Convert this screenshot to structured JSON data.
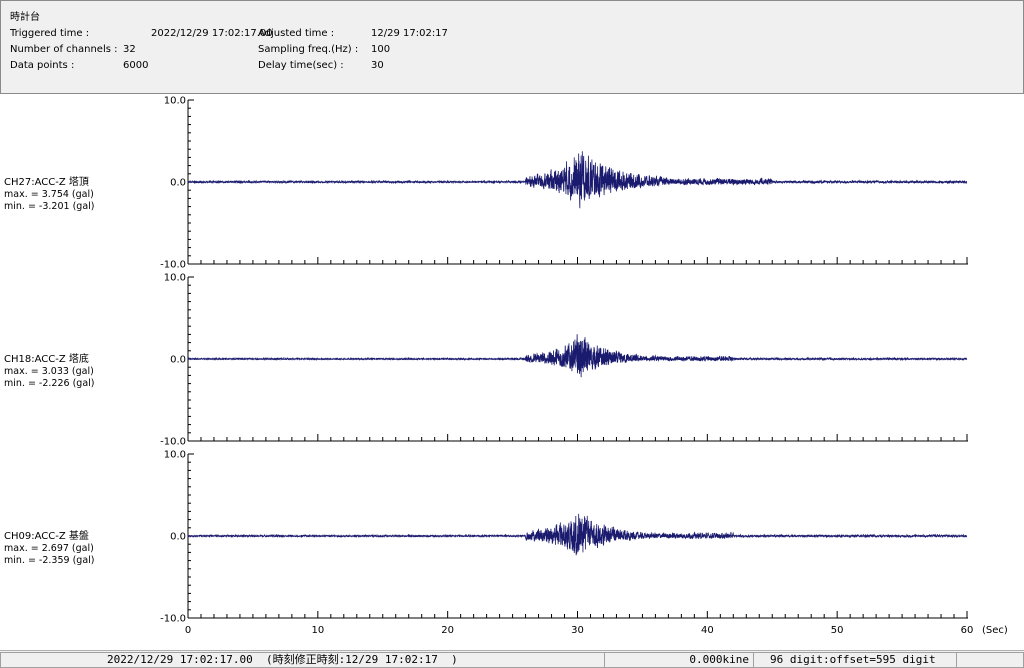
{
  "header": {
    "station": "時計台",
    "triggered_label": "Triggered time :",
    "triggered_value": "2022/12/29 17:02:17.00",
    "channels_label": "Number of channels :",
    "channels_value": "32",
    "datapoints_label": "Data points :",
    "datapoints_value": "6000",
    "adjusted_label": "Adjusted time :",
    "adjusted_value": "12/29 17:02:17",
    "sampling_label": "Sampling freq.(Hz) :",
    "sampling_value": "100",
    "delay_label": "Delay time(sec) :",
    "delay_value": "30"
  },
  "chart_data": {
    "type": "line",
    "x_unit": "(Sec)",
    "xlim": [
      0,
      60
    ],
    "x_ticks": [
      "0",
      "10",
      "20",
      "30",
      "40",
      "50",
      "60"
    ],
    "y_ticks": [
      "10.0",
      "0.0",
      "-10.0"
    ],
    "ylim": [
      -10,
      10
    ],
    "series_color": "#1a1a6e",
    "grid": false,
    "panels": [
      {
        "name": "CH27:ACC-Z 塔頂",
        "max_label": "max. = 3.754 (gal)",
        "min_label": "min. = -3.201 (gal)",
        "max": 3.754,
        "min": -3.201,
        "onset_sec": 26,
        "peak_sec": 30.2,
        "coda_end_sec": 41
      },
      {
        "name": "CH18:ACC-Z 塔底",
        "max_label": "max. = 3.033 (gal)",
        "min_label": "min. = -2.226 (gal)",
        "max": 3.033,
        "min": -2.226,
        "onset_sec": 26,
        "peak_sec": 30.2,
        "coda_end_sec": 38
      },
      {
        "name": "CH09:ACC-Z 基盤",
        "max_label": "max. = 2.697 (gal)",
        "min_label": "min. = -2.359 (gal)",
        "max": 2.697,
        "min": -2.359,
        "onset_sec": 26,
        "peak_sec": 30.0,
        "coda_end_sec": 38
      }
    ]
  },
  "statusbar": {
    "time": "2022/12/29 17:02:17.00  (時刻修正時刻:12/29 17:02:17  )",
    "velocity": "0.000kine",
    "digit": "96 digit:offset=595 digit"
  }
}
